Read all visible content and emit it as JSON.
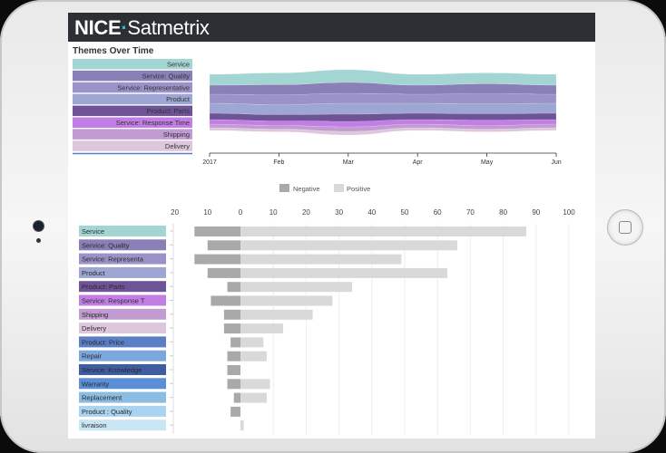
{
  "header": {
    "brand_bold": "NICE",
    "brand_separator": "·",
    "brand_rest": "Satmetrix"
  },
  "colors": {
    "header_bg": "#2c2f33",
    "themes": [
      "#a3d5d3",
      "#8a7fb6",
      "#9b92c8",
      "#9ea7d3",
      "#6f5397",
      "#c37ee6",
      "#c29bd3",
      "#dec7dc",
      "#5b7fc4",
      "#7ba7dd",
      "#3f5ea0",
      "#5a8fd8",
      "#8bbce2",
      "#a9d3ef",
      "#c9e6f5"
    ],
    "negative": "#a9a9a9",
    "positive": "#d9d9d9"
  },
  "chart_data": [
    {
      "type": "area",
      "title": "Themes Over Time",
      "stacked": true,
      "x": [
        "2017",
        "Feb",
        "Mar",
        "Apr",
        "May",
        "Jun"
      ],
      "legend_placement": "left",
      "series": [
        {
          "name": "Delivery",
          "values": [
            3,
            3,
            4,
            3,
            3,
            3
          ]
        },
        {
          "name": "Shipping",
          "values": [
            4,
            4,
            5,
            4,
            4,
            4
          ]
        },
        {
          "name": "Service: Response Time",
          "values": [
            5,
            5,
            6,
            5,
            6,
            5
          ]
        },
        {
          "name": "Product: Parts",
          "values": [
            7,
            7,
            8,
            7,
            7,
            7
          ]
        },
        {
          "name": "Product",
          "values": [
            11,
            11,
            12,
            11,
            11,
            11
          ]
        },
        {
          "name": "Service: Representative",
          "values": [
            10,
            11,
            11,
            10,
            11,
            10
          ]
        },
        {
          "name": "Service: Quality",
          "values": [
            10,
            11,
            12,
            10,
            11,
            10
          ]
        },
        {
          "name": "Service",
          "values": [
            12,
            13,
            14,
            12,
            12,
            12
          ]
        }
      ]
    },
    {
      "type": "bar",
      "orientation": "horizontal",
      "legend": [
        "Negative",
        "Positive"
      ],
      "legend_placement": "top",
      "xlim": [
        -20,
        100
      ],
      "x_ticks": [
        "20",
        "10",
        "0",
        "10",
        "20",
        "30",
        "40",
        "50",
        "60",
        "70",
        "80",
        "90",
        "100"
      ],
      "categories": [
        "Service",
        "Service: Quality",
        "Service: Representa",
        "Product",
        "Product: Parts",
        "Service: Response T",
        "Shipping",
        "Delivery",
        "Product: Price",
        "Repair",
        "Service: Knowledge",
        "Warranty",
        "Replacement",
        "Product : Quality",
        "livraison"
      ],
      "series": [
        {
          "name": "Negative",
          "values": [
            14,
            10,
            14,
            10,
            4,
            9,
            5,
            5,
            3,
            4,
            4,
            4,
            2,
            3,
            0
          ]
        },
        {
          "name": "Positive",
          "values": [
            87,
            66,
            49,
            63,
            34,
            28,
            22,
            13,
            7,
            8,
            0,
            9,
            8,
            0,
            1
          ]
        }
      ]
    }
  ]
}
